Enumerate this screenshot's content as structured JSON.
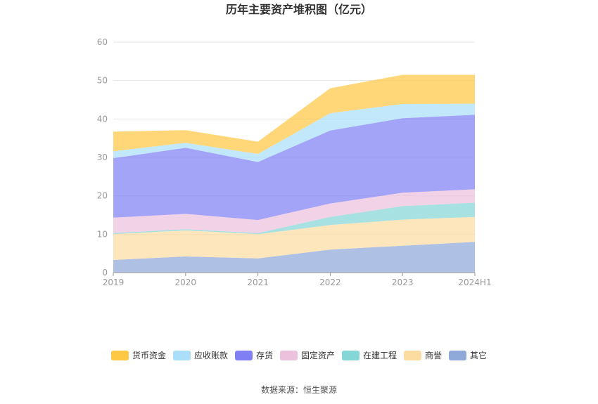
{
  "chart_data": {
    "type": "area",
    "stacked": true,
    "title": "历年主要资产堆积图（亿元）",
    "source": "数据来源：恒生聚源",
    "categories": [
      "2019",
      "2020",
      "2021",
      "2022",
      "2023",
      "2024H1"
    ],
    "ylim": [
      0,
      60
    ],
    "yticks": [
      0,
      10,
      20,
      30,
      40,
      50,
      60
    ],
    "grid": true,
    "legend_position": "bottom",
    "series": [
      {
        "name": "其它",
        "color": "#8fa9d9",
        "values": [
          3.3,
          4.2,
          3.7,
          6.0,
          7.0,
          8.0
        ]
      },
      {
        "name": "商誉",
        "color": "#fddca2",
        "values": [
          6.7,
          6.8,
          6.3,
          6.4,
          6.8,
          6.5
        ]
      },
      {
        "name": "在建工程",
        "color": "#85d6d6",
        "values": [
          0.3,
          0.3,
          0.3,
          2.1,
          3.5,
          3.7
        ]
      },
      {
        "name": "固定资产",
        "color": "#ebc1de",
        "values": [
          4.0,
          4.0,
          3.4,
          3.5,
          3.5,
          3.5
        ]
      },
      {
        "name": "存货",
        "color": "#8080f4",
        "values": [
          15.5,
          17.2,
          15.1,
          19.0,
          19.4,
          19.4
        ]
      },
      {
        "name": "应收账款",
        "color": "#abdff9",
        "values": [
          1.8,
          1.3,
          2.1,
          4.5,
          3.7,
          2.9
        ]
      },
      {
        "name": "货币资金",
        "color": "#ffc844",
        "values": [
          5.1,
          3.3,
          3.2,
          6.5,
          7.6,
          7.5
        ]
      }
    ],
    "legend_order": [
      "货币资金",
      "应收账款",
      "存货",
      "固定资产",
      "在建工程",
      "商誉",
      "其它"
    ]
  }
}
